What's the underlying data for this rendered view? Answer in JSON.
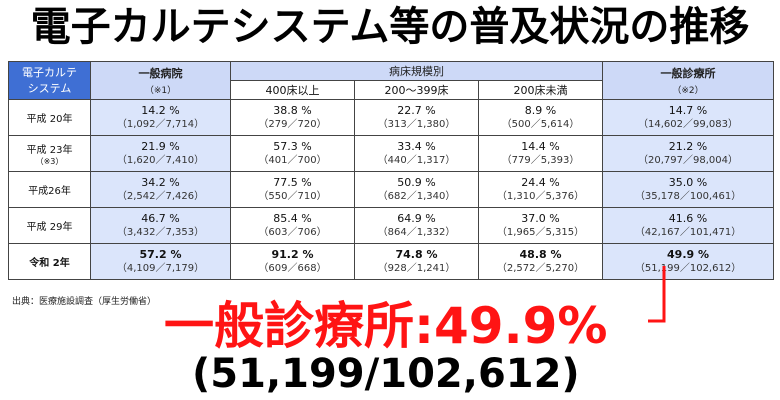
{
  "title": "電子カルテシステム等の普及状況の推移",
  "table": {
    "corner": [
      "電子カルテ",
      "システム"
    ],
    "col_general_hospital": {
      "label": "一般病院",
      "note": "（※1）"
    },
    "col_bed_scale": "病床規模別",
    "sub_cols": [
      "400床以上",
      "200～399床",
      "200床未満"
    ],
    "col_general_clinic": {
      "label": "一般診療所",
      "note": "（※2）"
    },
    "rows": [
      {
        "label": "平成 20年",
        "note": "",
        "cells": [
          {
            "pct": "14.2 %",
            "cnt": "（1,092／7,714）"
          },
          {
            "pct": "38.8 %",
            "cnt": "（279／720）"
          },
          {
            "pct": "22.7 %",
            "cnt": "（313／1,380）"
          },
          {
            "pct": "8.9 %",
            "cnt": "（500／5,614）"
          },
          {
            "pct": "14.7 %",
            "cnt": "（14,602／99,083）"
          }
        ]
      },
      {
        "label": "平成 23年",
        "note": "（※3）",
        "cells": [
          {
            "pct": "21.9 %",
            "cnt": "（1,620／7,410）"
          },
          {
            "pct": "57.3 %",
            "cnt": "（401／700）"
          },
          {
            "pct": "33.4 %",
            "cnt": "（440／1,317）"
          },
          {
            "pct": "14.4 %",
            "cnt": "（779／5,393）"
          },
          {
            "pct": "21.2 %",
            "cnt": "（20,797／98,004）"
          }
        ]
      },
      {
        "label": "平成26年",
        "note": "",
        "cells": [
          {
            "pct": "34.2 %",
            "cnt": "（2,542／7,426）"
          },
          {
            "pct": "77.5 %",
            "cnt": "（550／710）"
          },
          {
            "pct": "50.9 %",
            "cnt": "（682／1,340）"
          },
          {
            "pct": "24.4 %",
            "cnt": "（1,310／5,376）"
          },
          {
            "pct": "35.0 %",
            "cnt": "（35,178／100,461）"
          }
        ]
      },
      {
        "label": "平成 29年",
        "note": "",
        "cells": [
          {
            "pct": "46.7 %",
            "cnt": "（3,432／7,353）"
          },
          {
            "pct": "85.4 %",
            "cnt": "（603／706）"
          },
          {
            "pct": "64.9 %",
            "cnt": "（864／1,332）"
          },
          {
            "pct": "37.0 %",
            "cnt": "（1,965／5,315）"
          },
          {
            "pct": "41.6 %",
            "cnt": "（42,167／101,471）"
          }
        ]
      },
      {
        "label": "令和 2年",
        "note": "",
        "cells": [
          {
            "pct": "57.2 %",
            "cnt": "（4,109／7,179）"
          },
          {
            "pct": "91.2 %",
            "cnt": "（609／668）"
          },
          {
            "pct": "74.8 %",
            "cnt": "（928／1,241）"
          },
          {
            "pct": "48.8 %",
            "cnt": "（2,572／5,270）"
          },
          {
            "pct": "49.9 %",
            "cnt": "（51,199／102,612）"
          }
        ]
      }
    ]
  },
  "source": "出典：医療施設調査（厚生労働省）",
  "highlight": {
    "label": "一般診療所:49.9%",
    "count": "(51,199/102,612)",
    "color": "#ff1414"
  }
}
